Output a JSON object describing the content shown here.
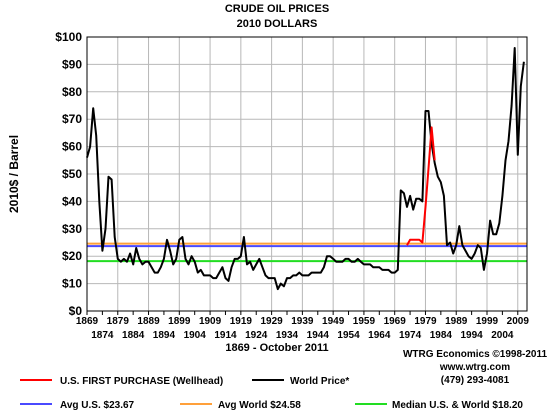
{
  "chart_data": {
    "type": "line",
    "title": "CRUDE OIL PRICES",
    "subtitle": "2010 DOLLARS",
    "ylabel": "2010$ / Barrel",
    "xlabel": "1869 - October 2011",
    "ylim": [
      0,
      100
    ],
    "xlim": [
      1869,
      2012
    ],
    "yticks": [
      "$0",
      "$10",
      "$20",
      "$30",
      "$40",
      "$50",
      "$60",
      "$70",
      "$80",
      "$90",
      "$100"
    ],
    "xticks_upper": [
      "1869",
      "1879",
      "1889",
      "1899",
      "1909",
      "1919",
      "1929",
      "1939",
      "1949",
      "1959",
      "1969",
      "1979",
      "1989",
      "1999",
      "2009"
    ],
    "xticks_lower": [
      "1874",
      "1884",
      "1894",
      "1904",
      "1914",
      "1924",
      "1934",
      "1944",
      "1954",
      "1964",
      "1974",
      "1984",
      "1994",
      "2004"
    ],
    "grid": true,
    "credits": [
      "WTRG Economics ©1998-2011",
      "www.wtrg.com",
      "(479) 293-4081"
    ],
    "series": [
      {
        "name": "World Price*",
        "color": "#000000",
        "x": [
          1869,
          1870,
          1871,
          1872,
          1873,
          1874,
          1875,
          1876,
          1877,
          1878,
          1879,
          1880,
          1881,
          1882,
          1883,
          1884,
          1885,
          1886,
          1887,
          1888,
          1889,
          1890,
          1891,
          1892,
          1893,
          1894,
          1895,
          1896,
          1897,
          1898,
          1899,
          1900,
          1901,
          1902,
          1903,
          1904,
          1905,
          1906,
          1907,
          1908,
          1909,
          1910,
          1911,
          1912,
          1913,
          1914,
          1915,
          1916,
          1917,
          1918,
          1919,
          1920,
          1921,
          1922,
          1923,
          1924,
          1925,
          1926,
          1927,
          1928,
          1929,
          1930,
          1931,
          1932,
          1933,
          1934,
          1935,
          1936,
          1937,
          1938,
          1939,
          1940,
          1941,
          1942,
          1943,
          1944,
          1945,
          1946,
          1947,
          1948,
          1949,
          1950,
          1951,
          1952,
          1953,
          1954,
          1955,
          1956,
          1957,
          1958,
          1959,
          1960,
          1961,
          1962,
          1963,
          1964,
          1965,
          1966,
          1967,
          1968,
          1969,
          1970,
          1971,
          1972,
          1973,
          1974,
          1975,
          1976,
          1977,
          1978,
          1979,
          1980,
          1981,
          1982,
          1983,
          1984,
          1985,
          1986,
          1987,
          1988,
          1989,
          1990,
          1991,
          1992,
          1993,
          1994,
          1995,
          1996,
          1997,
          1998,
          1999,
          2000,
          2001,
          2002,
          2003,
          2004,
          2005,
          2006,
          2007,
          2008,
          2009,
          2010,
          2011
        ],
        "y": [
          56,
          60,
          74,
          64,
          40,
          22,
          30,
          49,
          48,
          27,
          19,
          18,
          19,
          18,
          21,
          17,
          23,
          19,
          17,
          18,
          18,
          16,
          14,
          14,
          16,
          19,
          26,
          22,
          17,
          19,
          26,
          27,
          19,
          17,
          20,
          18,
          14,
          15,
          13,
          13,
          13,
          12,
          12,
          14,
          16,
          12,
          11,
          16,
          19,
          19,
          20,
          27,
          17,
          18,
          15,
          17,
          19,
          16,
          13,
          12,
          12,
          12,
          8,
          10,
          9,
          12,
          12,
          13,
          13,
          14,
          13,
          13,
          13,
          14,
          14,
          14,
          14,
          16,
          20,
          20,
          19,
          18,
          18,
          18,
          19,
          19,
          18,
          18,
          19,
          18,
          17,
          17,
          17,
          16,
          16,
          16,
          15,
          15,
          15,
          14,
          14,
          15,
          44,
          43,
          38,
          42,
          37,
          41,
          41,
          40,
          73,
          73,
          61,
          54,
          49,
          47,
          42,
          24,
          25,
          21,
          24,
          31,
          24,
          22,
          20,
          19,
          21,
          24,
          23,
          15,
          21,
          33,
          28,
          28,
          32,
          42,
          55,
          62,
          75,
          96,
          57,
          82,
          91
        ]
      },
      {
        "name": "U.S. FIRST PURCHASE (Wellhead)",
        "color": "#ff0000",
        "x": [
          1973,
          1974,
          1975,
          1976,
          1977,
          1978,
          1979,
          1980,
          1981,
          1982
        ],
        "y": [
          24,
          26,
          26,
          26,
          26,
          25,
          38,
          52,
          67,
          55
        ]
      }
    ],
    "reference_lines": [
      {
        "name": "Avg U.S. $23.67",
        "value": 23.67,
        "color": "#4a4aff"
      },
      {
        "name": "Avg World $24.58",
        "value": 24.58,
        "color": "#ffa03a"
      },
      {
        "name": "Median U.S. & World $18.20",
        "value": 18.2,
        "color": "#22dd22"
      }
    ],
    "legend_placement": "bottom"
  }
}
